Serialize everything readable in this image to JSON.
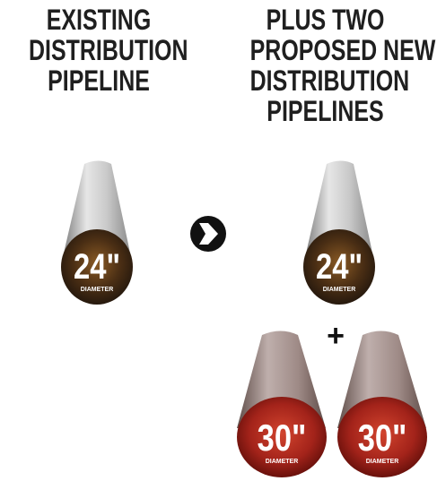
{
  "left_column": {
    "heading_lines": [
      "EXISTING",
      "DISTRIBUTION",
      "PIPELINE"
    ]
  },
  "right_column": {
    "heading_lines": [
      "PLUS TWO",
      "PROPOSED NEW",
      "DISTRIBUTION",
      "PIPELINES"
    ]
  },
  "pipes": {
    "existing": {
      "size": "24\"",
      "unit_label": "DIAMETER"
    },
    "proposed_existing": {
      "size": "24\"",
      "unit_label": "DIAMETER"
    },
    "new_1": {
      "size": "30\"",
      "unit_label": "DIAMETER"
    },
    "new_2": {
      "size": "30\"",
      "unit_label": "DIAMETER"
    }
  },
  "plus_sign": "+",
  "arrow_icon": "arrow-right-circle-icon",
  "colors": {
    "heading_text": "#1f1f1f",
    "pipe_body_light": "#d9d9d9",
    "pipe_body_dark": "#8a8a8a",
    "pipe_24_face_dark": "#2a1d12",
    "pipe_24_face_light": "#8a5a24",
    "pipe_30_body_light": "#b9a9a6",
    "pipe_30_body_dark": "#6e5b57",
    "pipe_30_face_dark": "#6a0f0a",
    "pipe_30_face_light": "#d2442e",
    "arrow": "#111111"
  }
}
